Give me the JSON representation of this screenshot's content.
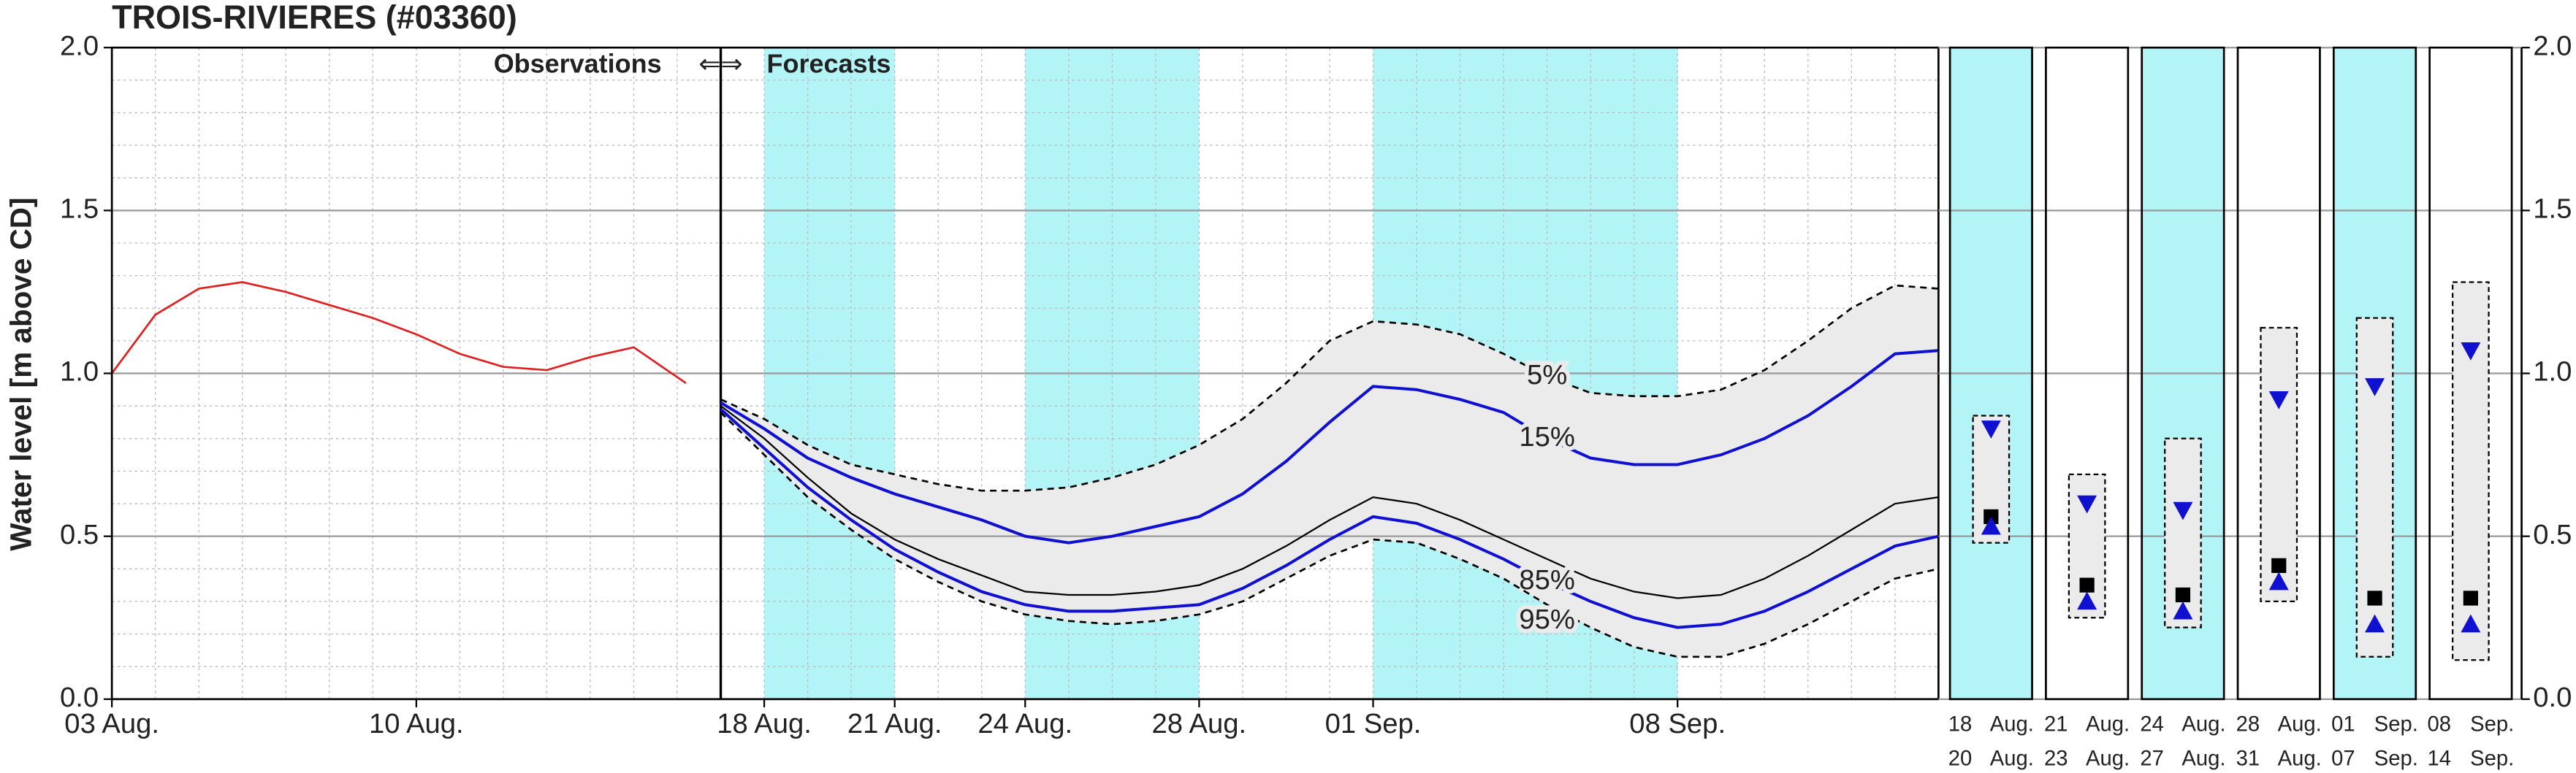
{
  "chart_data": [
    {
      "type": "line",
      "title": "TROIS-RIVIERES (#03360)",
      "y_label": "Water level [m above CD]",
      "annotation_left": "Observations",
      "annotation_arrows": "⇐⇒",
      "annotation_right": "Forecasts",
      "xlim": [
        0,
        42
      ],
      "xticks": [
        {
          "value": 0,
          "label": "03 Aug."
        },
        {
          "value": 7,
          "label": "10 Aug."
        },
        {
          "value": 15,
          "label": "18 Aug."
        },
        {
          "value": 18,
          "label": "21 Aug."
        },
        {
          "value": 21,
          "label": "24 Aug."
        },
        {
          "value": 25,
          "label": "28 Aug."
        },
        {
          "value": 29,
          "label": "01 Sep."
        },
        {
          "value": 36,
          "label": "08 Sep."
        }
      ],
      "ylim": [
        0,
        2
      ],
      "yticks": [
        {
          "value": 0,
          "label": "0.0"
        },
        {
          "value": 0.5,
          "label": "0.5"
        },
        {
          "value": 1,
          "label": "1.0"
        },
        {
          "value": 1.5,
          "label": "1.5"
        },
        {
          "value": 2,
          "label": "2.0"
        }
      ],
      "grid": true,
      "minor_grid_step": {
        "x": 1,
        "y": 0.1
      },
      "forecast_start": 14,
      "shaded_periods": [
        [
          15,
          18
        ],
        [
          21,
          25
        ],
        [
          29,
          36
        ]
      ],
      "shade_color": "#b3f5f7",
      "band_color": "#ebebeb",
      "series": [
        {
          "color": "#e02020",
          "style": "solid",
          "x": [
            0,
            1,
            2,
            3,
            4,
            5,
            6,
            7,
            8,
            9,
            10,
            11,
            12,
            13.2
          ],
          "values": [
            1.0,
            1.18,
            1.26,
            1.28,
            1.25,
            1.21,
            1.17,
            1.12,
            1.06,
            1.02,
            1.01,
            1.05,
            1.08,
            0.97
          ]
        },
        {
          "name": "5%",
          "color": "#000000",
          "style": "dashed",
          "x": [
            14,
            15,
            16,
            17,
            18,
            19,
            20,
            21,
            22,
            23,
            24,
            25,
            26,
            27,
            28,
            29,
            30,
            31,
            32,
            33,
            34,
            35,
            36,
            37,
            38,
            39,
            40,
            41,
            42
          ],
          "values": [
            0.92,
            0.86,
            0.78,
            0.72,
            0.69,
            0.66,
            0.64,
            0.64,
            0.65,
            0.68,
            0.72,
            0.78,
            0.86,
            0.97,
            1.1,
            1.16,
            1.15,
            1.12,
            1.06,
            0.99,
            0.94,
            0.93,
            0.93,
            0.95,
            1.01,
            1.1,
            1.2,
            1.27,
            1.26
          ]
        },
        {
          "name": "15%",
          "color": "#1010d0",
          "style": "solid",
          "x": [
            14,
            15,
            16,
            17,
            18,
            19,
            20,
            21,
            22,
            23,
            24,
            25,
            26,
            27,
            28,
            29,
            30,
            31,
            32,
            33,
            34,
            35,
            36,
            37,
            38,
            39,
            40,
            41,
            42
          ],
          "values": [
            0.91,
            0.83,
            0.74,
            0.68,
            0.63,
            0.59,
            0.55,
            0.5,
            0.48,
            0.5,
            0.53,
            0.56,
            0.63,
            0.73,
            0.85,
            0.96,
            0.95,
            0.92,
            0.88,
            0.8,
            0.74,
            0.72,
            0.72,
            0.75,
            0.8,
            0.87,
            0.96,
            1.06,
            1.07
          ]
        },
        {
          "color": "#000000",
          "style": "thin",
          "x": [
            14,
            15,
            16,
            17,
            18,
            19,
            20,
            21,
            22,
            23,
            24,
            25,
            26,
            27,
            28,
            29,
            30,
            31,
            32,
            33,
            34,
            35,
            36,
            37,
            38,
            39,
            40,
            41,
            42
          ],
          "values": [
            0.9,
            0.8,
            0.68,
            0.57,
            0.49,
            0.43,
            0.38,
            0.33,
            0.32,
            0.32,
            0.33,
            0.35,
            0.4,
            0.47,
            0.55,
            0.62,
            0.6,
            0.55,
            0.49,
            0.43,
            0.37,
            0.33,
            0.31,
            0.32,
            0.37,
            0.44,
            0.52,
            0.6,
            0.62
          ]
        },
        {
          "name": "85%",
          "color": "#1010d0",
          "style": "solid",
          "x": [
            14,
            15,
            16,
            17,
            18,
            19,
            20,
            21,
            22,
            23,
            24,
            25,
            26,
            27,
            28,
            29,
            30,
            31,
            32,
            33,
            34,
            35,
            36,
            37,
            38,
            39,
            40,
            41,
            42
          ],
          "values": [
            0.89,
            0.77,
            0.65,
            0.55,
            0.46,
            0.39,
            0.33,
            0.29,
            0.27,
            0.27,
            0.28,
            0.29,
            0.34,
            0.41,
            0.49,
            0.56,
            0.54,
            0.49,
            0.43,
            0.36,
            0.3,
            0.25,
            0.22,
            0.23,
            0.27,
            0.33,
            0.4,
            0.47,
            0.5
          ]
        },
        {
          "name": "95%",
          "color": "#000000",
          "style": "dashed",
          "x": [
            14,
            15,
            16,
            17,
            18,
            19,
            20,
            21,
            22,
            23,
            24,
            25,
            26,
            27,
            28,
            29,
            30,
            31,
            32,
            33,
            34,
            35,
            36,
            37,
            38,
            39,
            40,
            41,
            42
          ],
          "values": [
            0.88,
            0.75,
            0.62,
            0.52,
            0.43,
            0.36,
            0.3,
            0.26,
            0.24,
            0.23,
            0.24,
            0.26,
            0.3,
            0.37,
            0.44,
            0.49,
            0.48,
            0.43,
            0.37,
            0.29,
            0.22,
            0.16,
            0.13,
            0.13,
            0.17,
            0.23,
            0.3,
            0.37,
            0.4
          ]
        }
      ]
    },
    {
      "type": "summary",
      "ylim": [
        0,
        2
      ],
      "yticks": [
        {
          "value": 0,
          "label": "0.0"
        },
        {
          "value": 0.5,
          "label": "0.5"
        },
        {
          "value": 1,
          "label": "1.0"
        },
        {
          "value": 1.5,
          "label": "1.5"
        },
        {
          "value": 2,
          "label": "2.0"
        }
      ],
      "start_labels": [
        "18 Aug.",
        "21 Aug.",
        "24 Aug.",
        "28 Aug.",
        "01 Sep.",
        "08 Sep."
      ],
      "end_labels": [
        "20 Aug.",
        "23 Aug.",
        "27 Aug.",
        "31 Aug.",
        "07 Sep.",
        "14 Sep."
      ],
      "shaded": [
        true,
        false,
        true,
        false,
        true,
        false
      ],
      "shade_color": "#b3f5f7",
      "box_color": "#ebebeb",
      "marker_color": "#1010d0",
      "square_color": "#000000",
      "box_top": [
        0.87,
        0.69,
        0.8,
        1.14,
        1.17,
        1.28
      ],
      "box_bottom": [
        0.48,
        0.25,
        0.22,
        0.3,
        0.13,
        0.12
      ],
      "down_triangle": [
        0.83,
        0.6,
        0.58,
        0.92,
        0.96,
        1.07
      ],
      "square": [
        0.56,
        0.35,
        0.32,
        0.41,
        0.31,
        0.31
      ],
      "up_triangle": [
        0.53,
        0.3,
        0.27,
        0.36,
        0.23,
        0.23
      ]
    }
  ]
}
